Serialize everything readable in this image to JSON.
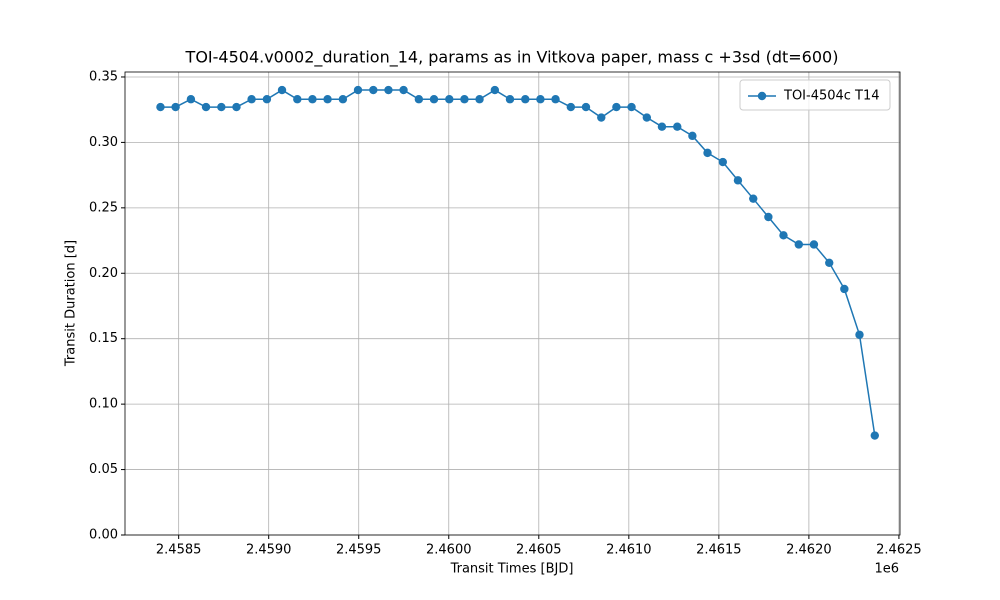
{
  "chart_data": {
    "type": "line",
    "title": "TOI-4504.v0002_duration_14, params as in Vitkova paper, mass c +3sd (dt=600)",
    "xlabel": "Transit Times [BJD]",
    "ylabel": "Transit Duration [d]",
    "x_offset_label": "1e6",
    "x": [
      2458399,
      2458483,
      2458568,
      2458652,
      2458737,
      2458821,
      2458905,
      2458990,
      2459074,
      2459159,
      2459243,
      2459327,
      2459412,
      2459496,
      2459581,
      2459665,
      2459749,
      2459834,
      2459918,
      2460003,
      2460087,
      2460171,
      2460256,
      2460340,
      2460425,
      2460509,
      2460593,
      2460678,
      2460762,
      2460847,
      2460931,
      2461015,
      2461100,
      2461184,
      2461269,
      2461353,
      2461437,
      2461522,
      2461606,
      2461691,
      2461775,
      2461859,
      2461944,
      2462028,
      2462113,
      2462197,
      2462281,
      2462366
    ],
    "series": [
      {
        "name": "TOI-4504c T14",
        "color": "#1f77b4",
        "marker": "o",
        "values": [
          0.327,
          0.327,
          0.333,
          0.327,
          0.327,
          0.327,
          0.333,
          0.333,
          0.34,
          0.333,
          0.333,
          0.333,
          0.333,
          0.34,
          0.34,
          0.34,
          0.34,
          0.333,
          0.333,
          0.333,
          0.333,
          0.333,
          0.34,
          0.333,
          0.333,
          0.333,
          0.333,
          0.327,
          0.327,
          0.319,
          0.327,
          0.327,
          0.319,
          0.312,
          0.312,
          0.305,
          0.292,
          0.285,
          0.271,
          0.257,
          0.243,
          0.229,
          0.222,
          0.222,
          0.208,
          0.188,
          0.153,
          0.076
        ]
      }
    ],
    "xlim": [
      2458202,
      2462506
    ],
    "ylim": [
      0,
      0.3538
    ],
    "xticks": [
      {
        "value": 2458500,
        "label": "2.4585"
      },
      {
        "value": 2459000,
        "label": "2.4590"
      },
      {
        "value": 2459500,
        "label": "2.4595"
      },
      {
        "value": 2460000,
        "label": "2.4600"
      },
      {
        "value": 2460500,
        "label": "2.4605"
      },
      {
        "value": 2461000,
        "label": "2.4610"
      },
      {
        "value": 2461500,
        "label": "2.4615"
      },
      {
        "value": 2462000,
        "label": "2.4620"
      },
      {
        "value": 2462500,
        "label": "2.4625"
      }
    ],
    "yticks": [
      {
        "value": 0,
        "label": "0.00"
      },
      {
        "value": 0.05,
        "label": "0.05"
      },
      {
        "value": 0.1,
        "label": "0.10"
      },
      {
        "value": 0.15,
        "label": "0.15"
      },
      {
        "value": 0.2,
        "label": "0.20"
      },
      {
        "value": 0.25,
        "label": "0.25"
      },
      {
        "value": 0.3,
        "label": "0.30"
      },
      {
        "value": 0.35,
        "label": "0.35"
      }
    ],
    "grid": true,
    "legend": "upper right"
  }
}
